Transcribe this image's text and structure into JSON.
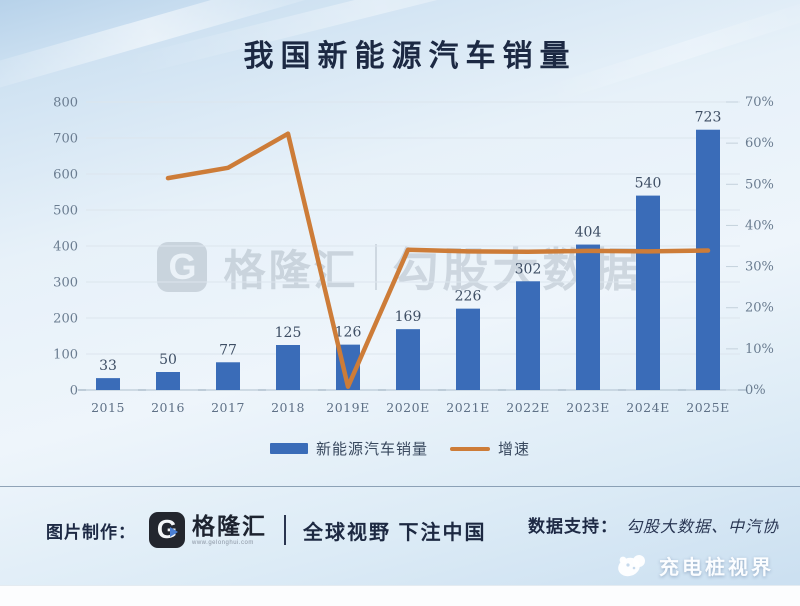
{
  "page": {
    "title": "我国新能源汽车销量"
  },
  "chart_data": {
    "type": "bar",
    "title": "我国新能源汽车销量",
    "categories": [
      "2015",
      "2016",
      "2017",
      "2018",
      "2019E",
      "2020E",
      "2021E",
      "2022E",
      "2023E",
      "2024E",
      "2025E"
    ],
    "series": [
      {
        "name": "新能源汽车销量",
        "type": "bar",
        "axis": "left",
        "color": "#3a6cb8",
        "values": [
          33,
          50,
          77,
          125,
          126,
          169,
          226,
          302,
          404,
          540,
          723
        ]
      },
      {
        "name": "增速",
        "type": "line",
        "axis": "right",
        "color": "#cd7c38",
        "values": [
          null,
          51.5,
          54,
          62.3,
          0.8,
          34.1,
          33.7,
          33.6,
          33.8,
          33.7,
          33.9
        ]
      }
    ],
    "left_axis": {
      "min": 0,
      "max": 800,
      "step": 100,
      "ticks": [
        "0",
        "100",
        "200",
        "300",
        "400",
        "500",
        "600",
        "700",
        "800"
      ]
    },
    "right_axis": {
      "min": 0,
      "max": 70,
      "step": 10,
      "unit": "%",
      "ticks": [
        "0%",
        "10%",
        "20%",
        "30%",
        "40%",
        "50%",
        "60%",
        "70%"
      ]
    },
    "legend_position": "bottom",
    "grid": true
  },
  "watermark": {
    "brand": "格隆汇",
    "logo_letter": "G",
    "product": "勾股大数据"
  },
  "footer": {
    "made_by_label": "图片制作：",
    "logo_letter": "G",
    "brand": "格隆汇",
    "brand_url": "www.gelonghui.com",
    "tagline": "全球视野 下注中国",
    "data_support_label": "数据支持：",
    "data_support_value": "勾股大数据、中汽协"
  },
  "corner_badge": {
    "text": "充电桩视界"
  }
}
